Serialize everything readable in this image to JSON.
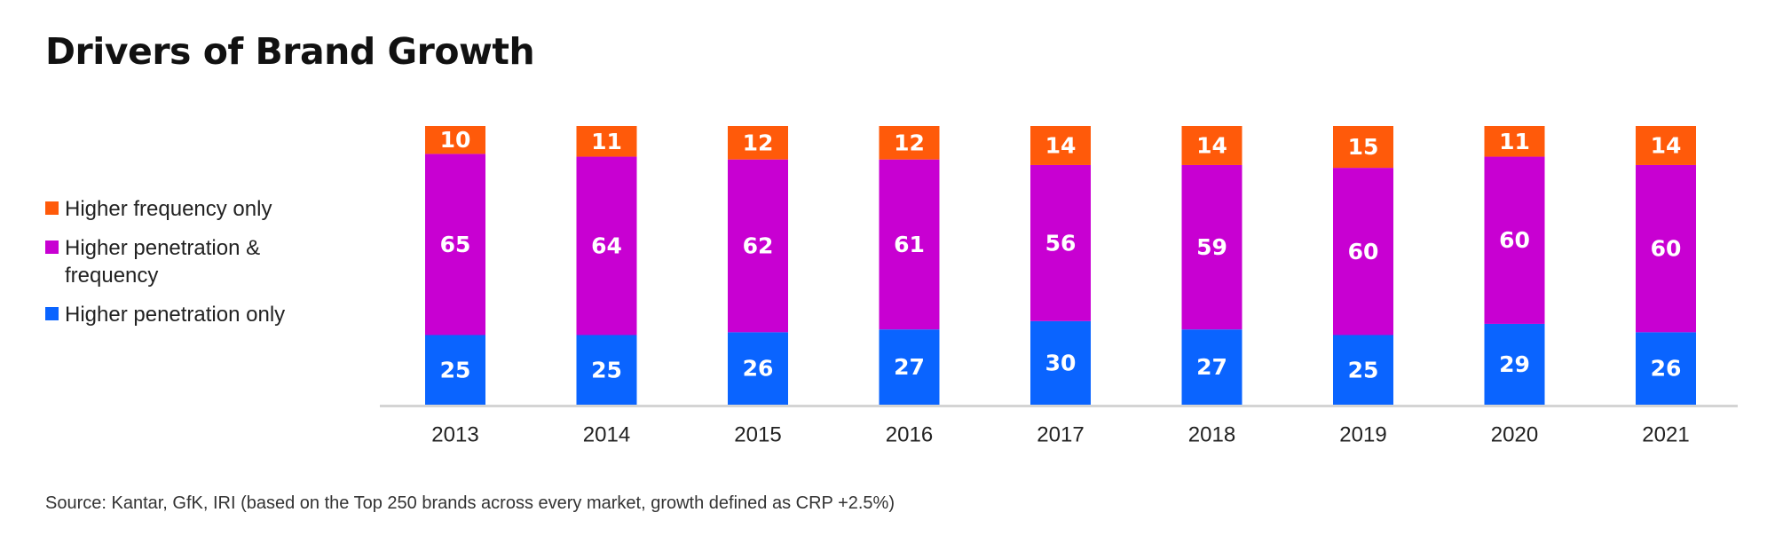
{
  "title": "Drivers of Brand Growth",
  "source": "Source: Kantar, GfK, IRI (based on the Top 250 brands across every market, growth defined as CRP +2.5%)",
  "legend": [
    {
      "label": "Higher frequency only",
      "color": "#FF5A0A"
    },
    {
      "label": "Higher penetration & frequency",
      "color": "#C800D2"
    },
    {
      "label": "Higher penetration only",
      "color": "#0A64FF"
    }
  ],
  "chart_data": {
    "type": "bar",
    "stacked": true,
    "categories": [
      "2013",
      "2014",
      "2015",
      "2016",
      "2017",
      "2018",
      "2019",
      "2020",
      "2021"
    ],
    "series": [
      {
        "name": "Higher penetration only",
        "color": "#0A64FF",
        "values": [
          25,
          25,
          26,
          27,
          30,
          27,
          25,
          29,
          26
        ]
      },
      {
        "name": "Higher penetration & frequency",
        "color": "#C800D2",
        "values": [
          65,
          64,
          62,
          61,
          56,
          59,
          60,
          60,
          60
        ]
      },
      {
        "name": "Higher frequency only",
        "color": "#FF5A0A",
        "values": [
          10,
          11,
          12,
          12,
          14,
          14,
          15,
          11,
          14
        ]
      }
    ],
    "title": "Drivers of Brand Growth",
    "xlabel": "",
    "ylabel": "",
    "ylim": [
      0,
      100
    ],
    "grid": false,
    "legend_position": "left"
  }
}
